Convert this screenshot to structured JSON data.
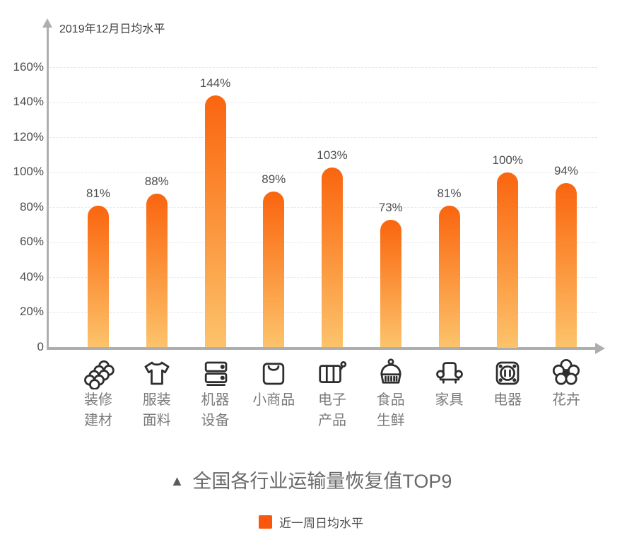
{
  "chart": {
    "y_axis_title": "2019年12月日均水平",
    "title_marker": "▲",
    "title": "全国各行业运输量恢复值TOP9",
    "legend_label": "近一周日均水平",
    "colors": {
      "bar_top": "#fa650f",
      "bar_bottom": "#fcc36b",
      "legend_swatch": "#f9570c",
      "axis": "#aeaeae"
    }
  },
  "chart_data": {
    "type": "bar",
    "title": "全国各行业运输量恢复值TOP9",
    "ylabel": "2019年12月日均水平",
    "legend": [
      "近一周日均水平"
    ],
    "legend_position": "bottom",
    "grid": "dashed-horizontal",
    "ylim": [
      0,
      170
    ],
    "yticks_percent": [
      0,
      20,
      40,
      60,
      80,
      100,
      120,
      140,
      160
    ],
    "y_tick_labels": [
      "0",
      "20%",
      "40%",
      "60%",
      "80%",
      "100%",
      "120%",
      "140%",
      "160%"
    ],
    "categories": [
      "装修建材",
      "服装面料",
      "机器设备",
      "小商品",
      "电子产品",
      "食品生鲜",
      "家具",
      "电器",
      "花卉"
    ],
    "category_lines": [
      [
        "装修",
        "建材"
      ],
      [
        "服装",
        "面料"
      ],
      [
        "机器",
        "设备"
      ],
      [
        "小商品"
      ],
      [
        "电子",
        "产品"
      ],
      [
        "食品",
        "生鲜"
      ],
      [
        "家具"
      ],
      [
        "电器"
      ],
      [
        "花卉"
      ]
    ],
    "icons": [
      "pipes-icon",
      "tshirt-icon",
      "machine-icon",
      "shopping-bag-icon",
      "battery-icon",
      "steamer-icon",
      "sofa-icon",
      "socket-icon",
      "flower-icon"
    ],
    "values": [
      81,
      88,
      144,
      89,
      103,
      73,
      81,
      100,
      94
    ],
    "value_labels": [
      "81%",
      "88%",
      "144%",
      "89%",
      "103%",
      "73%",
      "81%",
      "100%",
      "94%"
    ]
  }
}
